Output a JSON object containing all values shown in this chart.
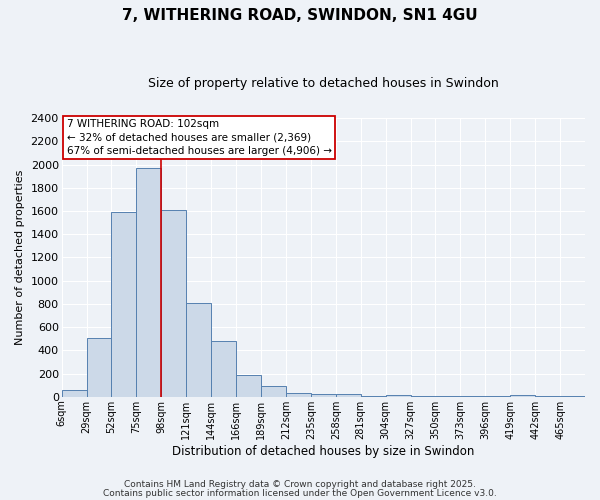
{
  "title1": "7, WITHERING ROAD, SWINDON, SN1 4GU",
  "title2": "Size of property relative to detached houses in Swindon",
  "xlabel": "Distribution of detached houses by size in Swindon",
  "ylabel": "Number of detached properties",
  "bar_labels": [
    "6sqm",
    "29sqm",
    "52sqm",
    "75sqm",
    "98sqm",
    "121sqm",
    "144sqm",
    "166sqm",
    "189sqm",
    "212sqm",
    "235sqm",
    "258sqm",
    "281sqm",
    "304sqm",
    "327sqm",
    "350sqm",
    "373sqm",
    "396sqm",
    "419sqm",
    "442sqm",
    "465sqm"
  ],
  "bar_values": [
    55,
    510,
    1590,
    1970,
    1610,
    810,
    480,
    190,
    95,
    35,
    20,
    20,
    5,
    15,
    5,
    5,
    5,
    5,
    15,
    5,
    5
  ],
  "bar_color_fill": "#ccd9e8",
  "bar_color_edge": "#5580b0",
  "bar_width": 1.0,
  "ylim": [
    0,
    2400
  ],
  "yticks": [
    0,
    200,
    400,
    600,
    800,
    1000,
    1200,
    1400,
    1600,
    1800,
    2000,
    2200,
    2400
  ],
  "red_line_x": 4.0,
  "red_line_color": "#cc0000",
  "annotation_title": "7 WITHERING ROAD: 102sqm",
  "annotation_line1": "← 32% of detached houses are smaller (2,369)",
  "annotation_line2": "67% of semi-detached houses are larger (4,906) →",
  "annotation_box_color": "#ffffff",
  "annotation_box_edge": "#cc0000",
  "bg_color": "#eef2f7",
  "grid_color": "#ffffff",
  "footnote1": "Contains HM Land Registry data © Crown copyright and database right 2025.",
  "footnote2": "Contains public sector information licensed under the Open Government Licence v3.0."
}
